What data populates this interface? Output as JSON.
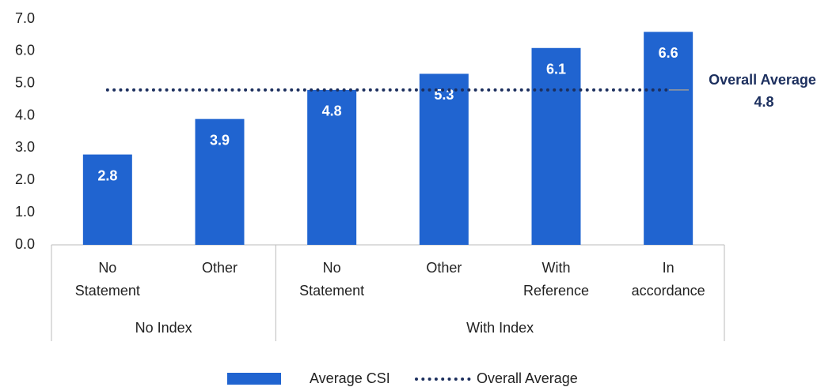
{
  "chart_data": {
    "type": "bar",
    "categories": [
      "No Statement",
      "Other",
      "No Statement",
      "Other",
      "With Reference",
      "In accordance"
    ],
    "groups": [
      {
        "label": "No Index",
        "count": 2
      },
      {
        "label": "With Index",
        "count": 4
      }
    ],
    "series": [
      {
        "name": "Average CSI",
        "color": "#2064d0",
        "values": [
          2.8,
          3.9,
          4.8,
          5.3,
          6.1,
          6.6
        ]
      }
    ],
    "average": {
      "name": "Overall Average",
      "color": "#1c2f5e",
      "value": 4.8
    },
    "annotation": "Overall Average",
    "ylim": [
      0,
      7
    ],
    "yticks": [
      {
        "value": 0,
        "label": "0.0"
      },
      {
        "value": 1,
        "label": "1.0"
      },
      {
        "value": 2,
        "label": "2.0"
      },
      {
        "value": 3,
        "label": "3.0"
      },
      {
        "value": 4,
        "label": "4.0"
      },
      {
        "value": 5,
        "label": "5.0"
      },
      {
        "value": 6,
        "label": "6.0"
      },
      {
        "value": 7,
        "label": "7.0"
      }
    ]
  }
}
